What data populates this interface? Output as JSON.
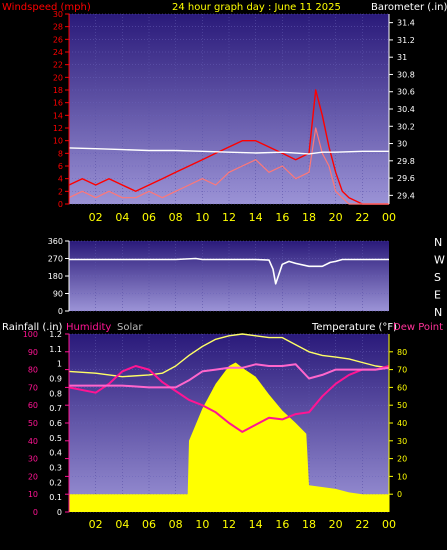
{
  "title": "24 hour graph day : June 11 2025",
  "x_ticks": [
    "02",
    "04",
    "06",
    "08",
    "10",
    "12",
    "14",
    "16",
    "18",
    "20",
    "22",
    "00"
  ],
  "colors": {
    "windspeed": "#ff0000",
    "barometer": "#ffffff",
    "direction": "#ffffff",
    "humidity": "#ff1493",
    "humidity_line": "#ff66cc",
    "solar": "#ffff00",
    "temperature": "#ffff66",
    "rainfall": "#ffffff",
    "dewpoint": "#ff3399",
    "background_top": "#2a1a7a",
    "background_bottom": "#9b93d6"
  },
  "chart_data": [
    {
      "type": "line",
      "panel": "wind",
      "left_label": "Windspeed (mph)",
      "right_label": "Barometer (.in)",
      "left_axis": {
        "ticks": [
          "30",
          "28",
          "26",
          "24",
          "22",
          "20",
          "18",
          "16",
          "14",
          "12",
          "10",
          "8",
          "6",
          "4",
          "2",
          "0"
        ],
        "range": [
          0,
          30
        ]
      },
      "right_axis": {
        "ticks": [
          "31.4",
          "31.2",
          "31",
          "30.8",
          "30.6",
          "30.4",
          "30.2",
          "30",
          "29.8",
          "29.6",
          "29.4"
        ],
        "range": [
          29.3,
          31.5
        ]
      },
      "series": [
        {
          "name": "windspeed",
          "x": [
            0,
            1,
            2,
            3,
            4,
            5,
            6,
            7,
            8,
            9,
            10,
            11,
            12,
            13,
            14,
            15,
            16,
            17,
            18,
            18.5,
            19,
            19.5,
            20,
            20.5,
            21,
            22,
            23,
            24
          ],
          "y": [
            1,
            2,
            1,
            2,
            1,
            1,
            2,
            1,
            2,
            3,
            4,
            3,
            5,
            6,
            7,
            5,
            6,
            4,
            5,
            12,
            8,
            6,
            2,
            1,
            0,
            0,
            0,
            0
          ]
        },
        {
          "name": "windgust",
          "x": [
            0,
            1,
            2,
            3,
            4,
            5,
            6,
            7,
            8,
            9,
            10,
            11,
            12,
            13,
            14,
            15,
            16,
            17,
            18,
            18.5,
            19,
            19.5,
            20,
            20.5,
            21,
            22,
            23,
            24
          ],
          "y": [
            3,
            4,
            3,
            4,
            3,
            2,
            3,
            4,
            5,
            6,
            7,
            8,
            9,
            10,
            10,
            9,
            8,
            7,
            8,
            18,
            14,
            9,
            5,
            2,
            1,
            0,
            0,
            0
          ]
        },
        {
          "name": "barometer",
          "x": [
            0,
            2,
            4,
            6,
            8,
            10,
            12,
            14,
            16,
            18,
            19,
            20,
            22,
            24
          ],
          "y": [
            29.95,
            29.94,
            29.93,
            29.92,
            29.92,
            29.91,
            29.9,
            29.89,
            29.9,
            29.88,
            29.9,
            29.9,
            29.91,
            29.91
          ]
        }
      ]
    },
    {
      "type": "line",
      "panel": "direction",
      "left_axis": {
        "ticks": [
          "360",
          "270",
          "180",
          "90",
          "0"
        ],
        "range": [
          0,
          360
        ]
      },
      "right_axis": {
        "ticks": [
          "N",
          "W",
          "S",
          "E",
          "N"
        ]
      },
      "series": [
        {
          "name": "direction",
          "x": [
            0,
            4,
            8,
            9.5,
            10,
            12,
            14,
            15,
            15.3,
            15.5,
            16,
            16.5,
            17,
            18,
            19,
            19.6,
            20,
            20.5,
            21,
            22,
            24
          ],
          "y": [
            265,
            265,
            265,
            270,
            265,
            265,
            265,
            262,
            215,
            140,
            240,
            255,
            245,
            230,
            230,
            250,
            255,
            265,
            265,
            265,
            265
          ]
        }
      ]
    },
    {
      "type": "area",
      "panel": "bottom",
      "left_label": "Rainfall (.in)",
      "humidity_label": "Humidity",
      "solar_label": "Solar",
      "right_label": "Temperature (°F)",
      "dewpoint_label": "Dew Point (",
      "left_axis": {
        "ticks": [
          "1.2",
          "1.1",
          "1",
          "0.9",
          "0.8",
          "0.7",
          "0.6",
          "0.5",
          "0.4",
          "0.3",
          "0.2",
          "0.1",
          "0"
        ],
        "range": [
          0,
          1.2
        ]
      },
      "humidity_axis": {
        "ticks": [
          "100",
          "90",
          "80",
          "70",
          "60",
          "50",
          "40",
          "30",
          "20",
          "10",
          "0"
        ],
        "range": [
          0,
          100
        ]
      },
      "right_axis": {
        "ticks": [
          "80",
          "70",
          "60",
          "50",
          "40",
          "30",
          "20",
          "10",
          "0"
        ],
        "range": [
          -10,
          90
        ]
      },
      "series": [
        {
          "name": "temperature",
          "x": [
            0,
            2,
            4,
            6,
            7,
            8,
            9,
            10,
            11,
            12,
            13,
            14,
            15,
            16,
            17,
            18,
            19,
            20,
            21,
            22,
            23,
            24
          ],
          "y": [
            69,
            68,
            66,
            67,
            68,
            72,
            78,
            83,
            87,
            89,
            90,
            89,
            88,
            88,
            84,
            80,
            78,
            77,
            76,
            74,
            72,
            71
          ]
        },
        {
          "name": "humidity",
          "x": [
            0,
            2,
            3,
            4,
            5,
            6,
            7,
            8,
            9,
            10,
            11,
            12,
            13,
            14,
            15,
            16,
            17,
            18,
            19,
            20,
            21,
            22,
            23,
            24
          ],
          "y": [
            70,
            67,
            72,
            79,
            82,
            80,
            73,
            68,
            63,
            60,
            56,
            50,
            45,
            49,
            53,
            52,
            55,
            56,
            65,
            72,
            77,
            80,
            80,
            82
          ]
        },
        {
          "name": "dewpoint",
          "x": [
            0,
            2,
            4,
            6,
            8,
            9,
            10,
            11,
            12,
            13,
            14,
            15,
            16,
            17,
            18,
            19,
            20,
            21,
            22,
            23,
            24
          ],
          "y": [
            61,
            61,
            61,
            60,
            60,
            64,
            69,
            70,
            71,
            71,
            73,
            72,
            72,
            73,
            65,
            67,
            70,
            70,
            70,
            70,
            71
          ]
        },
        {
          "name": "solar",
          "x": [
            0,
            8.9,
            9,
            10,
            11,
            12,
            12.5,
            13,
            14,
            15,
            16,
            17,
            17.8,
            18,
            20,
            21,
            22,
            24
          ],
          "y": [
            0,
            0,
            30,
            48,
            62,
            72,
            74,
            71,
            66,
            56,
            47,
            40,
            34,
            5,
            3,
            1,
            0,
            0
          ]
        }
      ]
    }
  ]
}
